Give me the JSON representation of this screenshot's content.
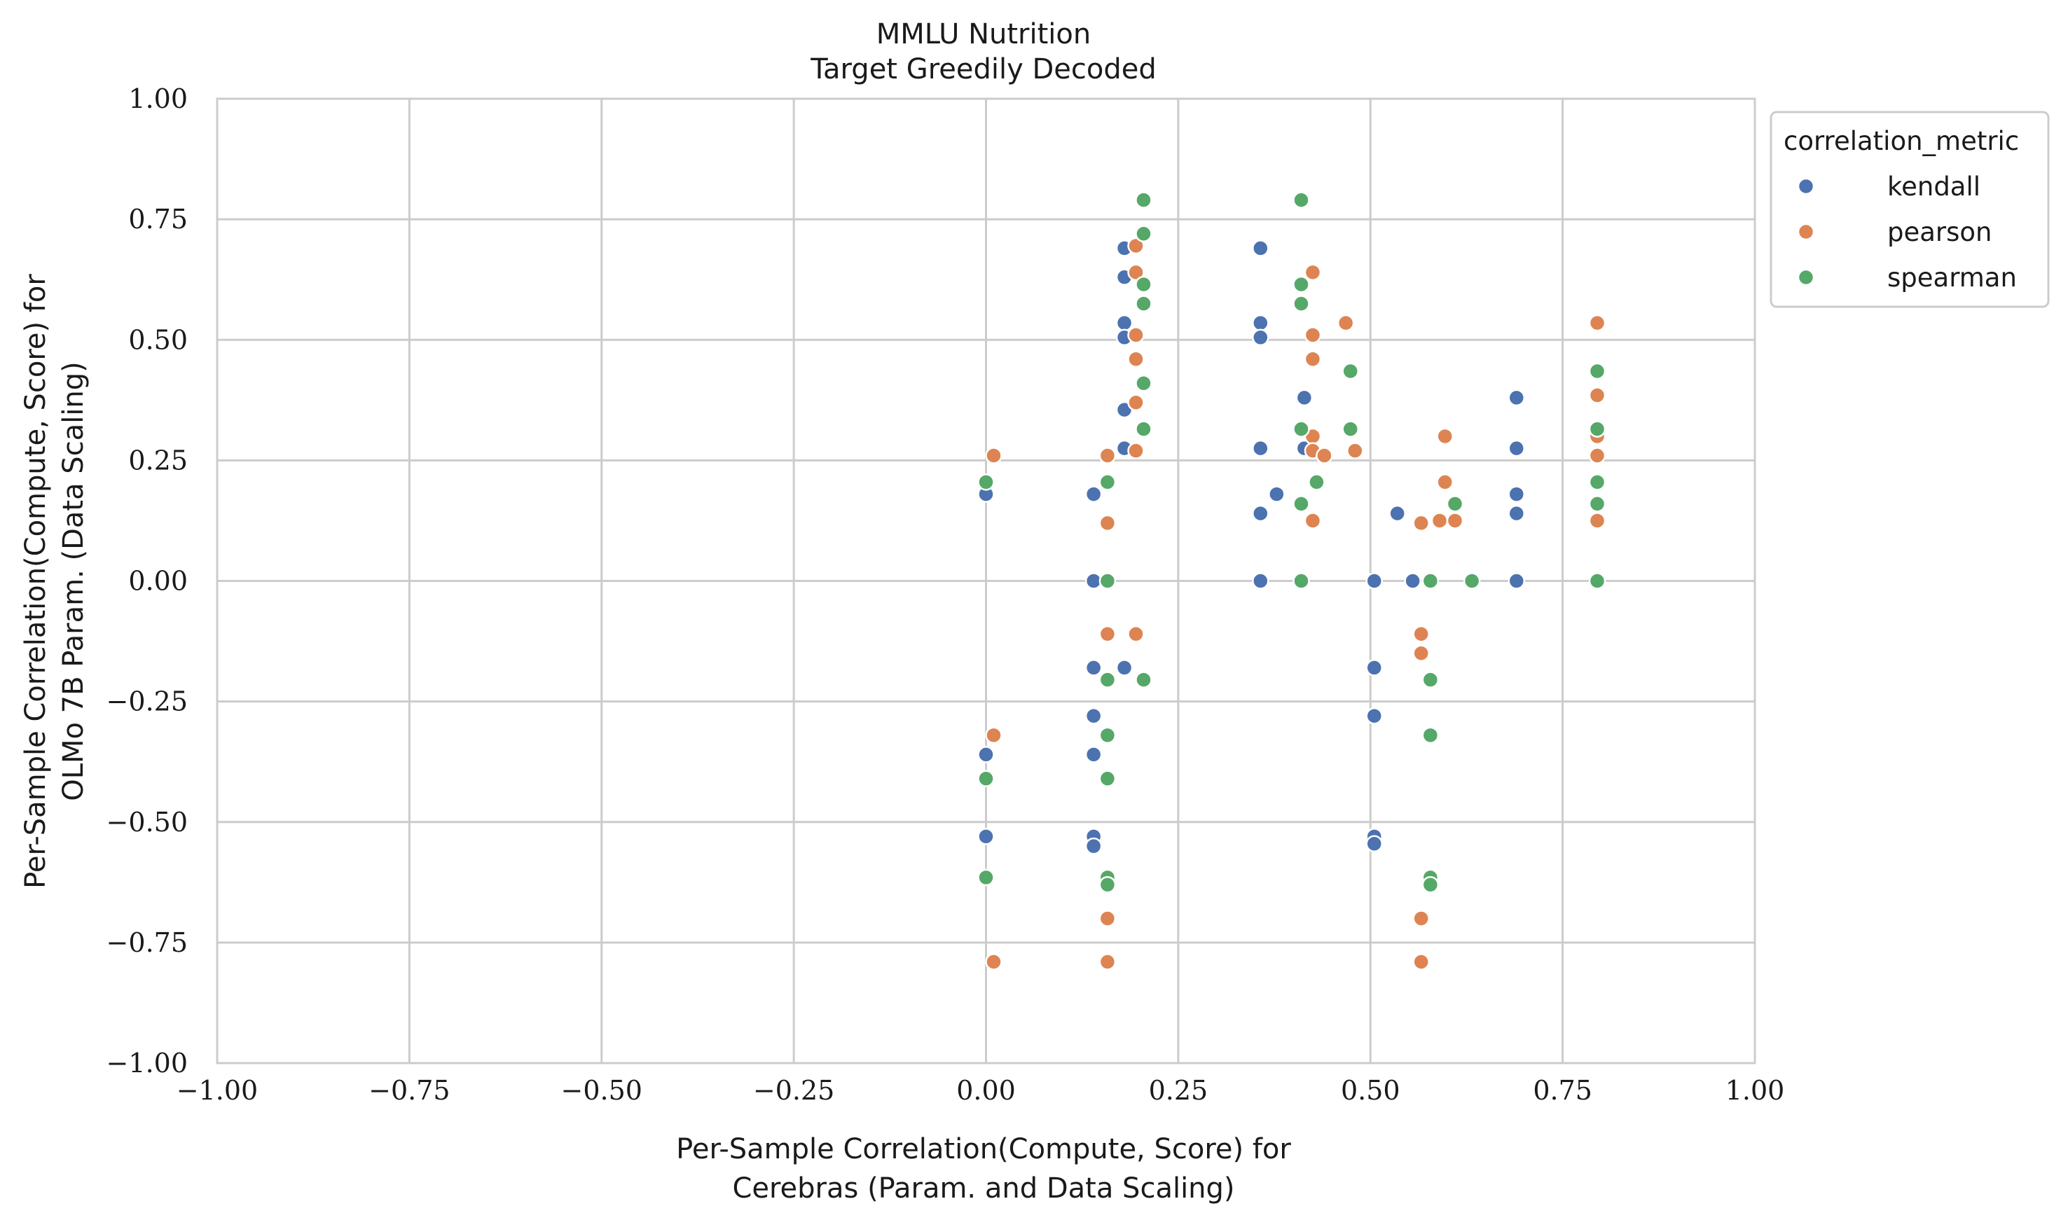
{
  "chart_data": {
    "type": "scatter",
    "title": "MMLU Nutrition",
    "subtitle": "Target Greedily Decoded",
    "xlabel_lines": [
      "Per-Sample Correlation(Compute, Score) for",
      "Cerebras (Param. and Data Scaling)"
    ],
    "ylabel_lines": [
      "Per-Sample Correlation(Compute, Score) for",
      "OLMo 7B Param. (Data Scaling)"
    ],
    "xlim": [
      -1.0,
      1.0
    ],
    "ylim": [
      -1.0,
      1.0
    ],
    "xticks": [
      -1.0,
      -0.75,
      -0.5,
      -0.25,
      0.0,
      0.25,
      0.5,
      0.75,
      1.0
    ],
    "yticks": [
      -1.0,
      -0.75,
      -0.5,
      -0.25,
      0.0,
      0.25,
      0.5,
      0.75,
      1.0
    ],
    "xtick_labels": [
      "−1.00",
      "−0.75",
      "−0.50",
      "−0.25",
      "0.00",
      "0.25",
      "0.50",
      "0.75",
      "1.00"
    ],
    "ytick_labels": [
      "−1.00",
      "−0.75",
      "−0.50",
      "−0.25",
      "0.00",
      "0.25",
      "0.50",
      "0.75",
      "1.00"
    ],
    "grid": true,
    "legend": {
      "title": "correlation_metric",
      "placement": "outside-top-right"
    },
    "series": [
      {
        "name": "kendall",
        "color": "#4c72b0",
        "points": [
          [
            0.0,
            0.18
          ],
          [
            0.0,
            -0.36
          ],
          [
            0.0,
            -0.53
          ],
          [
            0.14,
            0.18
          ],
          [
            0.14,
            0.0
          ],
          [
            0.14,
            -0.18
          ],
          [
            0.14,
            -0.28
          ],
          [
            0.14,
            -0.36
          ],
          [
            0.14,
            -0.53
          ],
          [
            0.14,
            -0.55
          ],
          [
            0.18,
            0.69
          ],
          [
            0.18,
            0.63
          ],
          [
            0.18,
            0.535
          ],
          [
            0.18,
            0.505
          ],
          [
            0.18,
            0.355
          ],
          [
            0.18,
            0.275
          ],
          [
            0.18,
            -0.18
          ],
          [
            0.357,
            0.69
          ],
          [
            0.357,
            0.535
          ],
          [
            0.357,
            0.505
          ],
          [
            0.357,
            0.275
          ],
          [
            0.357,
            0.14
          ],
          [
            0.357,
            0.0
          ],
          [
            0.378,
            0.18
          ],
          [
            0.414,
            0.38
          ],
          [
            0.414,
            0.275
          ],
          [
            0.535,
            0.14
          ],
          [
            0.505,
            0.0
          ],
          [
            0.505,
            -0.18
          ],
          [
            0.505,
            -0.28
          ],
          [
            0.505,
            -0.53
          ],
          [
            0.505,
            -0.545
          ],
          [
            0.555,
            0.0
          ],
          [
            0.69,
            0.38
          ],
          [
            0.69,
            0.275
          ],
          [
            0.69,
            0.18
          ],
          [
            0.69,
            0.14
          ],
          [
            0.69,
            0.0
          ]
        ]
      },
      {
        "name": "pearson",
        "color": "#dd8452",
        "points": [
          [
            0.01,
            0.26
          ],
          [
            0.01,
            -0.32
          ],
          [
            0.01,
            -0.79
          ],
          [
            0.158,
            0.26
          ],
          [
            0.158,
            0.12
          ],
          [
            0.158,
            -0.11
          ],
          [
            0.158,
            -0.7
          ],
          [
            0.158,
            -0.79
          ],
          [
            0.195,
            0.695
          ],
          [
            0.195,
            0.64
          ],
          [
            0.195,
            0.51
          ],
          [
            0.195,
            0.46
          ],
          [
            0.195,
            0.37
          ],
          [
            0.195,
            0.27
          ],
          [
            0.195,
            -0.11
          ],
          [
            0.425,
            0.64
          ],
          [
            0.425,
            0.51
          ],
          [
            0.425,
            0.46
          ],
          [
            0.425,
            0.3
          ],
          [
            0.425,
            0.27
          ],
          [
            0.425,
            0.125
          ],
          [
            0.44,
            0.26
          ],
          [
            0.468,
            0.535
          ],
          [
            0.48,
            0.27
          ],
          [
            0.566,
            0.12
          ],
          [
            0.566,
            -0.11
          ],
          [
            0.566,
            -0.15
          ],
          [
            0.566,
            -0.7
          ],
          [
            0.566,
            -0.79
          ],
          [
            0.59,
            0.125
          ],
          [
            0.597,
            0.3
          ],
          [
            0.597,
            0.205
          ],
          [
            0.61,
            0.125
          ],
          [
            0.795,
            0.535
          ],
          [
            0.795,
            0.385
          ],
          [
            0.795,
            0.3
          ],
          [
            0.795,
            0.26
          ],
          [
            0.795,
            0.125
          ]
        ]
      },
      {
        "name": "spearman",
        "color": "#55a868",
        "points": [
          [
            0.0,
            0.205
          ],
          [
            0.0,
            -0.41
          ],
          [
            0.0,
            -0.615
          ],
          [
            0.158,
            0.205
          ],
          [
            0.158,
            0.0
          ],
          [
            0.158,
            -0.205
          ],
          [
            0.158,
            -0.32
          ],
          [
            0.158,
            -0.41
          ],
          [
            0.158,
            -0.615
          ],
          [
            0.158,
            -0.63
          ],
          [
            0.205,
            0.79
          ],
          [
            0.205,
            0.72
          ],
          [
            0.205,
            0.615
          ],
          [
            0.205,
            0.575
          ],
          [
            0.205,
            0.41
          ],
          [
            0.205,
            0.315
          ],
          [
            0.205,
            -0.205
          ],
          [
            0.41,
            0.79
          ],
          [
            0.41,
            0.615
          ],
          [
            0.41,
            0.575
          ],
          [
            0.41,
            0.315
          ],
          [
            0.41,
            0.16
          ],
          [
            0.41,
            0.0
          ],
          [
            0.43,
            0.205
          ],
          [
            0.474,
            0.435
          ],
          [
            0.474,
            0.315
          ],
          [
            0.578,
            0.0
          ],
          [
            0.578,
            -0.205
          ],
          [
            0.578,
            -0.32
          ],
          [
            0.578,
            -0.615
          ],
          [
            0.578,
            -0.63
          ],
          [
            0.61,
            0.16
          ],
          [
            0.632,
            0.0
          ],
          [
            0.795,
            0.435
          ],
          [
            0.795,
            0.315
          ],
          [
            0.795,
            0.205
          ],
          [
            0.795,
            0.16
          ],
          [
            0.795,
            0.0
          ]
        ]
      }
    ]
  }
}
